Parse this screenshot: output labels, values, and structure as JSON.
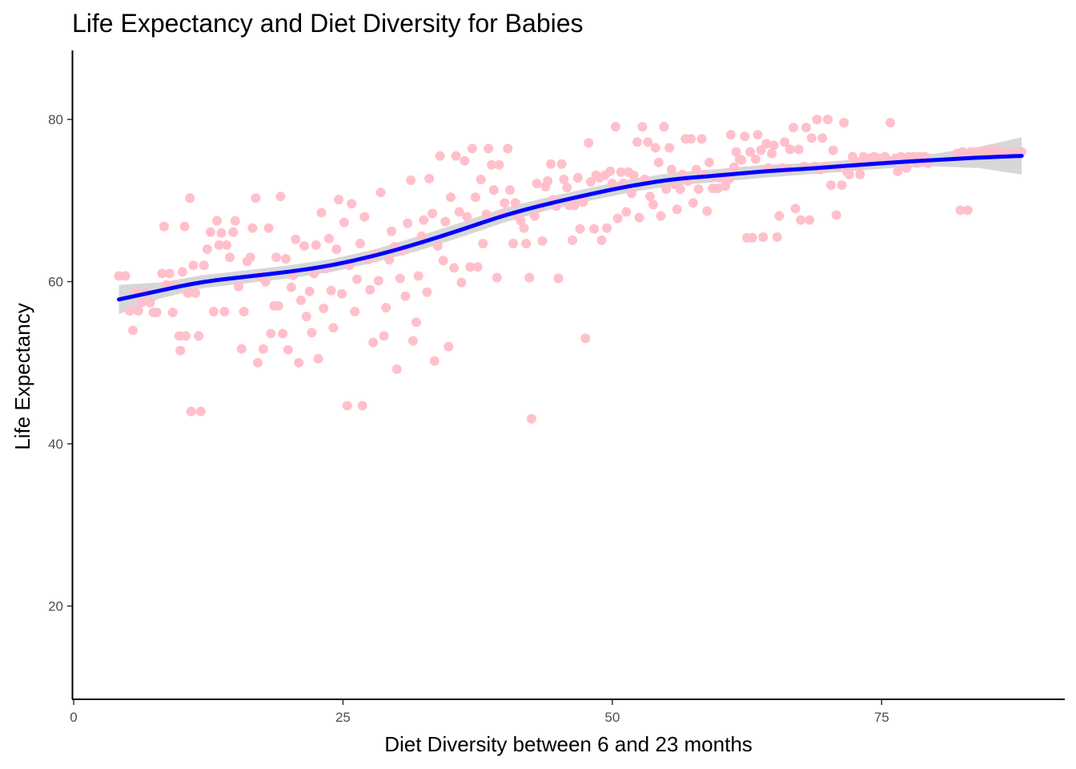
{
  "chart_data": {
    "type": "scatter",
    "title": "Life Expectancy and Diet Diversity for Babies",
    "xlabel": "Diet Diversity between 6 and 23 months",
    "ylabel": "Life Expectancy",
    "xlim": [
      0,
      92
    ],
    "ylim": [
      8.5,
      88.5
    ],
    "xticks": [
      0,
      25,
      50,
      75
    ],
    "yticks": [
      20,
      40,
      60,
      80
    ],
    "grid": false,
    "legend": "none",
    "colors": {
      "points": "#ffc0cb",
      "smooth_line": "#0000ff",
      "ribbon": "#bdbdbd",
      "axis": "#000000"
    },
    "points": [
      [
        4.2,
        60.7
      ],
      [
        4.8,
        60.7
      ],
      [
        5.2,
        56.4
      ],
      [
        5.5,
        54.0
      ],
      [
        5.8,
        58.8
      ],
      [
        6.0,
        56.4
      ],
      [
        6.3,
        57.4
      ],
      [
        6.7,
        58.6
      ],
      [
        7.1,
        57.4
      ],
      [
        7.4,
        56.2
      ],
      [
        7.7,
        56.2
      ],
      [
        8.2,
        61.0
      ],
      [
        8.4,
        66.8
      ],
      [
        8.6,
        59.6
      ],
      [
        8.9,
        61.0
      ],
      [
        9.2,
        56.2
      ],
      [
        9.4,
        59.6
      ],
      [
        9.8,
        53.3
      ],
      [
        9.9,
        51.5
      ],
      [
        10.1,
        61.2
      ],
      [
        10.3,
        66.8
      ],
      [
        10.4,
        53.3
      ],
      [
        10.6,
        58.6
      ],
      [
        10.8,
        70.3
      ],
      [
        10.9,
        44.0
      ],
      [
        11.1,
        62.0
      ],
      [
        11.3,
        58.6
      ],
      [
        11.6,
        53.3
      ],
      [
        11.8,
        44.0
      ],
      [
        12.1,
        62.0
      ],
      [
        12.4,
        64.0
      ],
      [
        12.7,
        66.1
      ],
      [
        13.0,
        56.3
      ],
      [
        13.3,
        67.5
      ],
      [
        13.5,
        64.5
      ],
      [
        13.7,
        66.0
      ],
      [
        14.0,
        56.3
      ],
      [
        14.2,
        64.5
      ],
      [
        14.5,
        63.0
      ],
      [
        14.8,
        66.1
      ],
      [
        15.0,
        67.5
      ],
      [
        15.3,
        59.4
      ],
      [
        15.6,
        51.7
      ],
      [
        15.8,
        56.3
      ],
      [
        16.1,
        62.5
      ],
      [
        16.4,
        63.0
      ],
      [
        16.6,
        66.6
      ],
      [
        16.9,
        70.3
      ],
      [
        17.1,
        50.0
      ],
      [
        17.3,
        60.7
      ],
      [
        17.6,
        51.7
      ],
      [
        17.8,
        60.0
      ],
      [
        18.1,
        66.6
      ],
      [
        18.3,
        53.6
      ],
      [
        18.6,
        57.0
      ],
      [
        18.8,
        63.0
      ],
      [
        19.0,
        57.0
      ],
      [
        19.2,
        70.5
      ],
      [
        19.4,
        53.6
      ],
      [
        19.7,
        62.8
      ],
      [
        19.9,
        51.6
      ],
      [
        20.2,
        59.3
      ],
      [
        20.4,
        60.8
      ],
      [
        20.6,
        65.2
      ],
      [
        20.9,
        50.0
      ],
      [
        21.1,
        57.7
      ],
      [
        21.4,
        64.4
      ],
      [
        21.6,
        55.7
      ],
      [
        21.9,
        58.8
      ],
      [
        22.1,
        53.7
      ],
      [
        22.3,
        61.0
      ],
      [
        22.5,
        64.5
      ],
      [
        22.7,
        50.5
      ],
      [
        23.0,
        68.5
      ],
      [
        23.2,
        56.7
      ],
      [
        23.4,
        61.6
      ],
      [
        23.7,
        65.3
      ],
      [
        23.9,
        58.9
      ],
      [
        24.1,
        54.3
      ],
      [
        24.4,
        64.0
      ],
      [
        24.6,
        70.1
      ],
      [
        24.9,
        58.5
      ],
      [
        25.1,
        67.3
      ],
      [
        25.4,
        44.7
      ],
      [
        25.6,
        62.0
      ],
      [
        25.8,
        69.6
      ],
      [
        26.1,
        56.3
      ],
      [
        26.3,
        60.3
      ],
      [
        26.6,
        64.7
      ],
      [
        26.8,
        44.7
      ],
      [
        27.0,
        68.0
      ],
      [
        27.3,
        62.7
      ],
      [
        27.5,
        59.0
      ],
      [
        27.8,
        52.5
      ],
      [
        28.0,
        63.4
      ],
      [
        28.3,
        60.1
      ],
      [
        28.5,
        71.0
      ],
      [
        28.8,
        53.3
      ],
      [
        29.0,
        56.8
      ],
      [
        29.3,
        62.7
      ],
      [
        29.5,
        66.2
      ],
      [
        29.8,
        64.3
      ],
      [
        30.0,
        49.2
      ],
      [
        30.3,
        60.4
      ],
      [
        30.5,
        63.8
      ],
      [
        30.8,
        58.2
      ],
      [
        31.0,
        67.2
      ],
      [
        31.3,
        72.5
      ],
      [
        31.5,
        52.7
      ],
      [
        31.8,
        55.0
      ],
      [
        32.0,
        60.7
      ],
      [
        32.3,
        65.6
      ],
      [
        32.5,
        67.6
      ],
      [
        32.8,
        58.7
      ],
      [
        33.0,
        72.7
      ],
      [
        33.3,
        68.4
      ],
      [
        33.5,
        50.2
      ],
      [
        33.8,
        64.4
      ],
      [
        34.0,
        75.5
      ],
      [
        34.3,
        62.6
      ],
      [
        34.5,
        67.4
      ],
      [
        34.8,
        52.0
      ],
      [
        35.0,
        70.4
      ],
      [
        35.3,
        61.7
      ],
      [
        35.5,
        75.5
      ],
      [
        35.8,
        68.6
      ],
      [
        36.0,
        59.9
      ],
      [
        36.3,
        74.9
      ],
      [
        36.5,
        68.0
      ],
      [
        36.8,
        61.8
      ],
      [
        37.0,
        76.4
      ],
      [
        37.3,
        70.4
      ],
      [
        37.5,
        61.8
      ],
      [
        37.8,
        72.6
      ],
      [
        38.0,
        64.7
      ],
      [
        38.3,
        68.3
      ],
      [
        38.5,
        76.4
      ],
      [
        38.8,
        74.4
      ],
      [
        39.0,
        71.3
      ],
      [
        39.3,
        60.5
      ],
      [
        39.5,
        74.4
      ],
      [
        39.8,
        68.3
      ],
      [
        40.0,
        69.7
      ],
      [
        40.3,
        76.4
      ],
      [
        40.5,
        71.3
      ],
      [
        40.8,
        64.7
      ],
      [
        41.0,
        69.7
      ],
      [
        41.3,
        68.0
      ],
      [
        41.5,
        67.5
      ],
      [
        41.8,
        66.6
      ],
      [
        42.0,
        64.7
      ],
      [
        42.3,
        60.5
      ],
      [
        42.5,
        43.1
      ],
      [
        42.8,
        68.1
      ],
      [
        43.0,
        72.1
      ],
      [
        43.3,
        69.3
      ],
      [
        43.5,
        65.0
      ],
      [
        43.8,
        71.7
      ],
      [
        44.0,
        72.4
      ],
      [
        44.3,
        74.5
      ],
      [
        44.5,
        70.1
      ],
      [
        44.8,
        69.3
      ],
      [
        45.0,
        60.4
      ],
      [
        45.3,
        74.5
      ],
      [
        45.5,
        72.6
      ],
      [
        45.8,
        71.6
      ],
      [
        46.0,
        69.4
      ],
      [
        46.3,
        65.1
      ],
      [
        46.5,
        69.4
      ],
      [
        46.8,
        72.8
      ],
      [
        47.0,
        66.5
      ],
      [
        47.3,
        69.8
      ],
      [
        47.5,
        53.0
      ],
      [
        47.8,
        77.1
      ],
      [
        48.0,
        72.3
      ],
      [
        48.3,
        66.5
      ],
      [
        48.5,
        73.1
      ],
      [
        48.8,
        72.8
      ],
      [
        49.0,
        65.1
      ],
      [
        49.3,
        73.1
      ],
      [
        49.5,
        66.6
      ],
      [
        49.8,
        73.6
      ],
      [
        50.0,
        72.1
      ],
      [
        50.3,
        79.1
      ],
      [
        50.5,
        67.8
      ],
      [
        50.8,
        73.5
      ],
      [
        51.0,
        72.1
      ],
      [
        51.3,
        68.6
      ],
      [
        51.5,
        73.5
      ],
      [
        51.8,
        70.9
      ],
      [
        52.0,
        73.1
      ],
      [
        52.3,
        77.2
      ],
      [
        52.5,
        67.9
      ],
      [
        52.8,
        79.1
      ],
      [
        53.0,
        72.6
      ],
      [
        53.3,
        77.2
      ],
      [
        53.5,
        70.5
      ],
      [
        53.8,
        69.5
      ],
      [
        54.0,
        76.5
      ],
      [
        54.3,
        74.7
      ],
      [
        54.5,
        68.1
      ],
      [
        54.8,
        79.1
      ],
      [
        55.0,
        71.4
      ],
      [
        55.3,
        76.5
      ],
      [
        55.5,
        73.8
      ],
      [
        55.8,
        72.0
      ],
      [
        56.0,
        68.9
      ],
      [
        56.3,
        71.4
      ],
      [
        56.5,
        73.2
      ],
      [
        56.8,
        77.6
      ],
      [
        57.0,
        72.4
      ],
      [
        57.3,
        77.6
      ],
      [
        57.5,
        69.7
      ],
      [
        57.8,
        73.8
      ],
      [
        58.0,
        71.4
      ],
      [
        58.3,
        77.6
      ],
      [
        58.5,
        73.2
      ],
      [
        58.8,
        68.7
      ],
      [
        59.0,
        74.7
      ],
      [
        59.3,
        71.5
      ],
      [
        59.5,
        73.0
      ],
      [
        59.8,
        71.5
      ],
      [
        60.0,
        72.8
      ],
      [
        60.3,
        73.1
      ],
      [
        60.5,
        71.8
      ],
      [
        60.8,
        72.6
      ],
      [
        61.0,
        78.1
      ],
      [
        61.3,
        74.1
      ],
      [
        61.5,
        76.0
      ],
      [
        61.8,
        75.1
      ],
      [
        62.0,
        75.0
      ],
      [
        62.3,
        77.9
      ],
      [
        62.5,
        65.4
      ],
      [
        62.8,
        76.0
      ],
      [
        63.0,
        65.4
      ],
      [
        63.3,
        75.1
      ],
      [
        63.5,
        78.1
      ],
      [
        63.8,
        76.2
      ],
      [
        64.0,
        65.5
      ],
      [
        64.3,
        77.0
      ],
      [
        64.5,
        74.0
      ],
      [
        64.8,
        75.8
      ],
      [
        65.0,
        76.8
      ],
      [
        65.3,
        65.5
      ],
      [
        65.5,
        68.1
      ],
      [
        65.8,
        74.0
      ],
      [
        66.0,
        77.2
      ],
      [
        66.3,
        73.9
      ],
      [
        66.5,
        76.3
      ],
      [
        66.8,
        79.0
      ],
      [
        67.0,
        69.0
      ],
      [
        67.3,
        76.3
      ],
      [
        67.5,
        67.6
      ],
      [
        67.8,
        74.2
      ],
      [
        68.0,
        79.0
      ],
      [
        68.3,
        67.6
      ],
      [
        68.5,
        77.7
      ],
      [
        68.8,
        74.2
      ],
      [
        69.0,
        80.0
      ],
      [
        69.3,
        73.8
      ],
      [
        69.5,
        77.7
      ],
      [
        69.8,
        74.2
      ],
      [
        70.0,
        80.0
      ],
      [
        70.3,
        71.9
      ],
      [
        70.5,
        76.2
      ],
      [
        70.8,
        68.2
      ],
      [
        71.0,
        74.2
      ],
      [
        71.3,
        71.9
      ],
      [
        71.5,
        79.6
      ],
      [
        71.8,
        73.5
      ],
      [
        72.0,
        73.2
      ],
      [
        72.3,
        75.4
      ],
      [
        72.5,
        74.9
      ],
      [
        72.8,
        74.2
      ],
      [
        73.0,
        73.2
      ],
      [
        73.3,
        75.4
      ],
      [
        73.5,
        74.9
      ],
      [
        73.8,
        75.2
      ],
      [
        74.0,
        74.9
      ],
      [
        74.3,
        75.4
      ],
      [
        74.5,
        75.0
      ],
      [
        74.8,
        75.2
      ],
      [
        75.0,
        74.9
      ],
      [
        75.3,
        75.4
      ],
      [
        75.5,
        75.0
      ],
      [
        75.8,
        79.6
      ],
      [
        76.0,
        74.8
      ],
      [
        76.3,
        75.2
      ],
      [
        76.5,
        73.6
      ],
      [
        76.8,
        75.4
      ],
      [
        77.0,
        75.2
      ],
      [
        77.3,
        74.0
      ],
      [
        77.5,
        75.4
      ],
      [
        77.8,
        75.2
      ],
      [
        78.0,
        75.4
      ],
      [
        78.3,
        74.6
      ],
      [
        78.5,
        75.4
      ],
      [
        78.8,
        74.8
      ],
      [
        79.0,
        75.4
      ],
      [
        79.3,
        74.6
      ],
      [
        82.0,
        75.8
      ],
      [
        82.3,
        68.8
      ],
      [
        82.5,
        76.0
      ],
      [
        82.8,
        75.8
      ],
      [
        83.0,
        68.8
      ],
      [
        83.3,
        76.0
      ],
      [
        83.5,
        75.8
      ],
      [
        83.8,
        76.0
      ],
      [
        84.0,
        75.6
      ],
      [
        84.3,
        76.0
      ],
      [
        84.5,
        75.6
      ],
      [
        84.8,
        76.2
      ],
      [
        85.0,
        75.9
      ],
      [
        85.3,
        75.6
      ],
      [
        85.5,
        76.2
      ],
      [
        85.8,
        75.9
      ],
      [
        86.0,
        75.7
      ],
      [
        86.3,
        75.9
      ],
      [
        86.5,
        75.7
      ],
      [
        86.8,
        75.9
      ],
      [
        87.0,
        76.0
      ],
      [
        87.3,
        75.9
      ],
      [
        87.5,
        76.0
      ],
      [
        87.8,
        76.0
      ],
      [
        88.0,
        76.0
      ]
    ],
    "smooth_line": [
      [
        4.2,
        57.8
      ],
      [
        8,
        58.9
      ],
      [
        12,
        60.0
      ],
      [
        16,
        60.6
      ],
      [
        20,
        61.2
      ],
      [
        24,
        62.0
      ],
      [
        28,
        63.2
      ],
      [
        32,
        64.7
      ],
      [
        36,
        66.4
      ],
      [
        40,
        68.2
      ],
      [
        44,
        69.6
      ],
      [
        48,
        70.8
      ],
      [
        52,
        71.9
      ],
      [
        56,
        72.7
      ],
      [
        60,
        73.1
      ],
      [
        64,
        73.6
      ],
      [
        68,
        73.9
      ],
      [
        72,
        74.3
      ],
      [
        76,
        74.7
      ],
      [
        80,
        75.0
      ],
      [
        84,
        75.3
      ],
      [
        88,
        75.5
      ]
    ],
    "ribbon": [
      [
        4.2,
        56.0,
        59.6
      ],
      [
        8,
        57.9,
        59.9
      ],
      [
        12,
        59.2,
        60.8
      ],
      [
        16,
        59.8,
        61.4
      ],
      [
        20,
        60.4,
        62.0
      ],
      [
        24,
        61.2,
        62.8
      ],
      [
        28,
        62.4,
        64.0
      ],
      [
        32,
        63.8,
        65.6
      ],
      [
        36,
        65.5,
        67.3
      ],
      [
        40,
        67.3,
        69.1
      ],
      [
        44,
        68.8,
        70.4
      ],
      [
        48,
        70.0,
        71.6
      ],
      [
        52,
        71.1,
        72.7
      ],
      [
        56,
        71.9,
        73.5
      ],
      [
        60,
        72.3,
        73.9
      ],
      [
        64,
        72.8,
        74.4
      ],
      [
        68,
        73.2,
        74.6
      ],
      [
        72,
        73.6,
        75.0
      ],
      [
        76,
        74.0,
        75.4
      ],
      [
        80,
        74.2,
        75.8
      ],
      [
        84,
        74.0,
        76.6
      ],
      [
        88,
        73.2,
        77.8
      ]
    ]
  }
}
